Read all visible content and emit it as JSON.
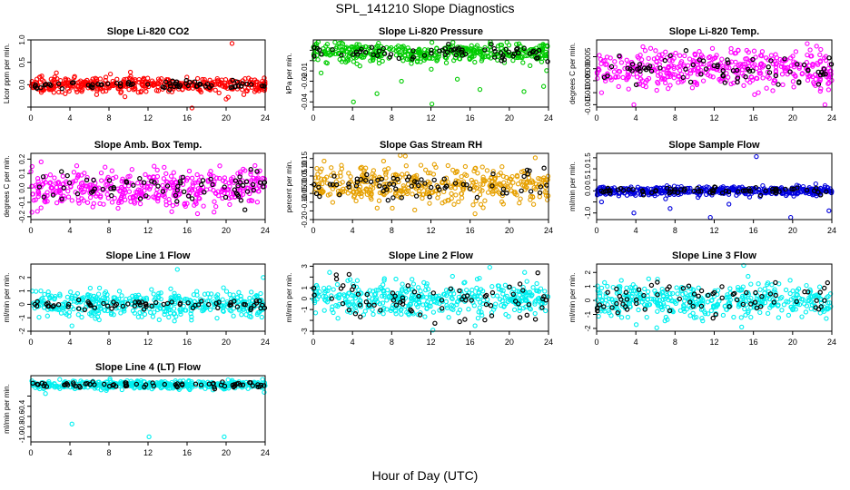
{
  "figure": {
    "title": "SPL_141210  Slope Diagnostics",
    "xlabel": "Hour of Day (UTC)"
  },
  "chart_data": [
    {
      "type": "scatter",
      "title": "Slope Li-820 CO2",
      "ylabel": "Licor ppm per min.",
      "xlim": [
        0,
        24
      ],
      "ylim": [
        -0.5,
        1.0
      ],
      "xticks": [
        0,
        4,
        8,
        12,
        16,
        20,
        24
      ],
      "yticks": [
        -0.5,
        0.0,
        0.5,
        1.0
      ],
      "ytick_labels": [
        "",
        "0.0",
        "0.5",
        "1.0"
      ],
      "main_color": "#ff0000",
      "main_center": 0.0,
      "main_spread": 0.08,
      "black_spread": 0.04,
      "outliers": [
        [
          20.6,
          0.92
        ],
        [
          16.5,
          -0.52
        ],
        [
          20.0,
          -0.32
        ],
        [
          10.2,
          0.28
        ],
        [
          9.2,
          -0.18
        ]
      ]
    },
    {
      "type": "scatter",
      "title": "Slope Li-820 Pressure",
      "ylabel": "kPa per min.",
      "xlim": [
        0,
        24
      ],
      "ylim": [
        -0.045,
        0.02
      ],
      "xticks": [
        0,
        4,
        8,
        12,
        16,
        20,
        24
      ],
      "yticks": [
        -0.04,
        -0.03,
        -0.02,
        -0.01,
        0.0,
        0.01
      ],
      "ytick_labels": [
        "-0.04",
        "",
        "-0.02",
        "-0.01",
        "",
        ""
      ],
      "main_color": "#00cc00",
      "main_center": 0.008,
      "main_spread": 0.005,
      "black_spread": 0.004,
      "outliers": [
        [
          6.5,
          -0.032
        ],
        [
          4.1,
          -0.04
        ],
        [
          12.1,
          -0.042
        ],
        [
          17.0,
          -0.028
        ],
        [
          21.5,
          -0.03
        ],
        [
          23.5,
          -0.025
        ],
        [
          9.0,
          -0.02
        ],
        [
          14.7,
          -0.018
        ],
        [
          0.8,
          -0.012
        ]
      ]
    },
    {
      "type": "scatter",
      "title": "Slope Li-820 Temp.",
      "ylabel": "degrees C per min.",
      "xlim": [
        0,
        24
      ],
      "ylim": [
        -0.016,
        0.012
      ],
      "xticks": [
        0,
        4,
        8,
        12,
        16,
        20,
        24
      ],
      "yticks": [
        -0.015,
        -0.01,
        -0.005,
        0.0,
        0.005
      ],
      "ytick_labels": [
        "-0.015",
        "-0.010",
        "-0.005",
        "0.000",
        "0.005"
      ],
      "main_color": "#ff00ff",
      "main_center": 0.0,
      "main_spread": 0.004,
      "black_spread": 0.003,
      "outliers": [
        [
          3.8,
          -0.015
        ],
        [
          23.3,
          -0.015
        ],
        [
          0.5,
          -0.01
        ],
        [
          16.5,
          -0.01
        ]
      ]
    },
    {
      "type": "scatter",
      "title": "Slope Amb. Box Temp.",
      "ylabel": "degrees C per min.",
      "xlim": [
        0,
        24
      ],
      "ylim": [
        -0.22,
        0.24
      ],
      "xticks": [
        0,
        4,
        8,
        12,
        16,
        20,
        24
      ],
      "yticks": [
        -0.2,
        -0.1,
        0.0,
        0.1,
        0.2
      ],
      "ytick_labels": [
        "-0.2",
        "-0.1",
        "0.0",
        "0.1",
        "0.2"
      ],
      "main_color": "#ff00ff",
      "main_center": 0.0,
      "main_spread": 0.07,
      "black_spread": 0.05,
      "outliers": []
    },
    {
      "type": "scatter",
      "title": "Slope Gas Stream RH",
      "ylabel": "percent per min.",
      "xlim": [
        0,
        24
      ],
      "ylim": [
        -0.2,
        0.18
      ],
      "xticks": [
        0,
        4,
        8,
        12,
        16,
        20,
        24
      ],
      "yticks": [
        -0.2,
        -0.15,
        -0.1,
        -0.05,
        0.0,
        0.05,
        0.1,
        0.15
      ],
      "ytick_labels": [
        "-0.20",
        "",
        "-0.10",
        "-0.05",
        "0.00",
        "0.05",
        "0.10",
        "0.15"
      ],
      "main_color": "#e6a000",
      "main_center": 0.0,
      "main_spread": 0.05,
      "black_spread": 0.04,
      "outliers": []
    },
    {
      "type": "scatter",
      "title": "Slope Sample Flow",
      "ylabel": "ml/min per min.",
      "xlim": [
        0,
        24
      ],
      "ylim": [
        -1.3,
        1.7
      ],
      "xticks": [
        0,
        4,
        8,
        12,
        16,
        20,
        24
      ],
      "yticks": [
        -1.0,
        -0.5,
        0.0,
        0.5,
        1.0,
        1.5
      ],
      "ytick_labels": [
        "-1.0",
        "",
        "0.0",
        "0.5",
        "1.0",
        "1.5"
      ],
      "main_color": "#0000dd",
      "main_center": 0.0,
      "main_spread": 0.1,
      "black_spread": 0.08,
      "outliers": [
        [
          16.3,
          1.55
        ],
        [
          3.8,
          -1.0
        ],
        [
          11.6,
          -1.2
        ],
        [
          19.8,
          -1.2
        ],
        [
          7.5,
          -0.8
        ],
        [
          23.7,
          -0.9
        ],
        [
          13.5,
          -0.6
        ],
        [
          0.5,
          -0.5
        ]
      ]
    },
    {
      "type": "scatter",
      "title": "Slope Line 1 Flow",
      "ylabel": "ml/min per min.",
      "xlim": [
        0,
        24
      ],
      "ylim": [
        -2,
        3
      ],
      "xticks": [
        0,
        4,
        8,
        12,
        16,
        20,
        24
      ],
      "yticks": [
        -2,
        -1,
        0,
        1,
        2
      ],
      "ytick_labels": [
        "-2",
        "-1",
        "0",
        "1",
        "2"
      ],
      "main_color": "#00f0f0",
      "main_center": 0.0,
      "main_spread": 0.5,
      "black_spread": 0.15,
      "outliers": [
        [
          15.0,
          2.6
        ],
        [
          23.8,
          2.0
        ],
        [
          4.2,
          -1.6
        ]
      ]
    },
    {
      "type": "scatter",
      "title": "Slope Line 2 Flow",
      "ylabel": "ml/min per min.",
      "xlim": [
        0,
        24
      ],
      "ylim": [
        -3,
        3.2
      ],
      "xticks": [
        0,
        4,
        8,
        12,
        16,
        20,
        24
      ],
      "yticks": [
        -3,
        -2,
        -1,
        0,
        1,
        2,
        3
      ],
      "ytick_labels": [
        "-3",
        "",
        "-1",
        "0",
        "1",
        "",
        "3"
      ],
      "main_color": "#00f0f0",
      "main_center": 0.0,
      "main_spread": 0.8,
      "black_spread": 1.0,
      "outliers": [
        [
          18.0,
          2.9
        ],
        [
          16.5,
          -2.5
        ],
        [
          12.2,
          -2.9
        ]
      ]
    },
    {
      "type": "scatter",
      "title": "Slope Line 3 Flow",
      "ylabel": "ml/min per min.",
      "xlim": [
        0,
        24
      ],
      "ylim": [
        -2.2,
        2.6
      ],
      "xticks": [
        0,
        4,
        8,
        12,
        16,
        20,
        24
      ],
      "yticks": [
        -2,
        -1,
        0,
        1,
        2
      ],
      "ytick_labels": [
        "-2",
        "-1",
        "0",
        "1",
        "2"
      ],
      "main_color": "#00f0f0",
      "main_center": 0.0,
      "main_spread": 0.6,
      "black_spread": 0.6,
      "outliers": [
        [
          15.0,
          2.5
        ],
        [
          14.8,
          -1.9
        ]
      ]
    },
    {
      "type": "scatter",
      "title": "Slope Line 4 (LT) Flow",
      "ylabel": "ml/min per min.",
      "xlim": [
        0,
        24
      ],
      "ylim": [
        -1.1,
        0.2
      ],
      "xticks": [
        0,
        4,
        8,
        12,
        16,
        20,
        24
      ],
      "yticks": [
        -1.0,
        -0.8,
        -0.6,
        -0.4,
        -0.2
      ],
      "ytick_labels": [
        "-1.0",
        "-0.8",
        "-0.6",
        "-0.4",
        ""
      ],
      "main_color": "#00f0f0",
      "main_center": 0.02,
      "main_spread": 0.04,
      "black_spread": 0.03,
      "outliers": [
        [
          4.2,
          -0.75
        ],
        [
          12.1,
          -1.0
        ],
        [
          19.8,
          -1.0
        ],
        [
          1.5,
          -0.15
        ],
        [
          7.2,
          -0.08
        ]
      ]
    }
  ]
}
